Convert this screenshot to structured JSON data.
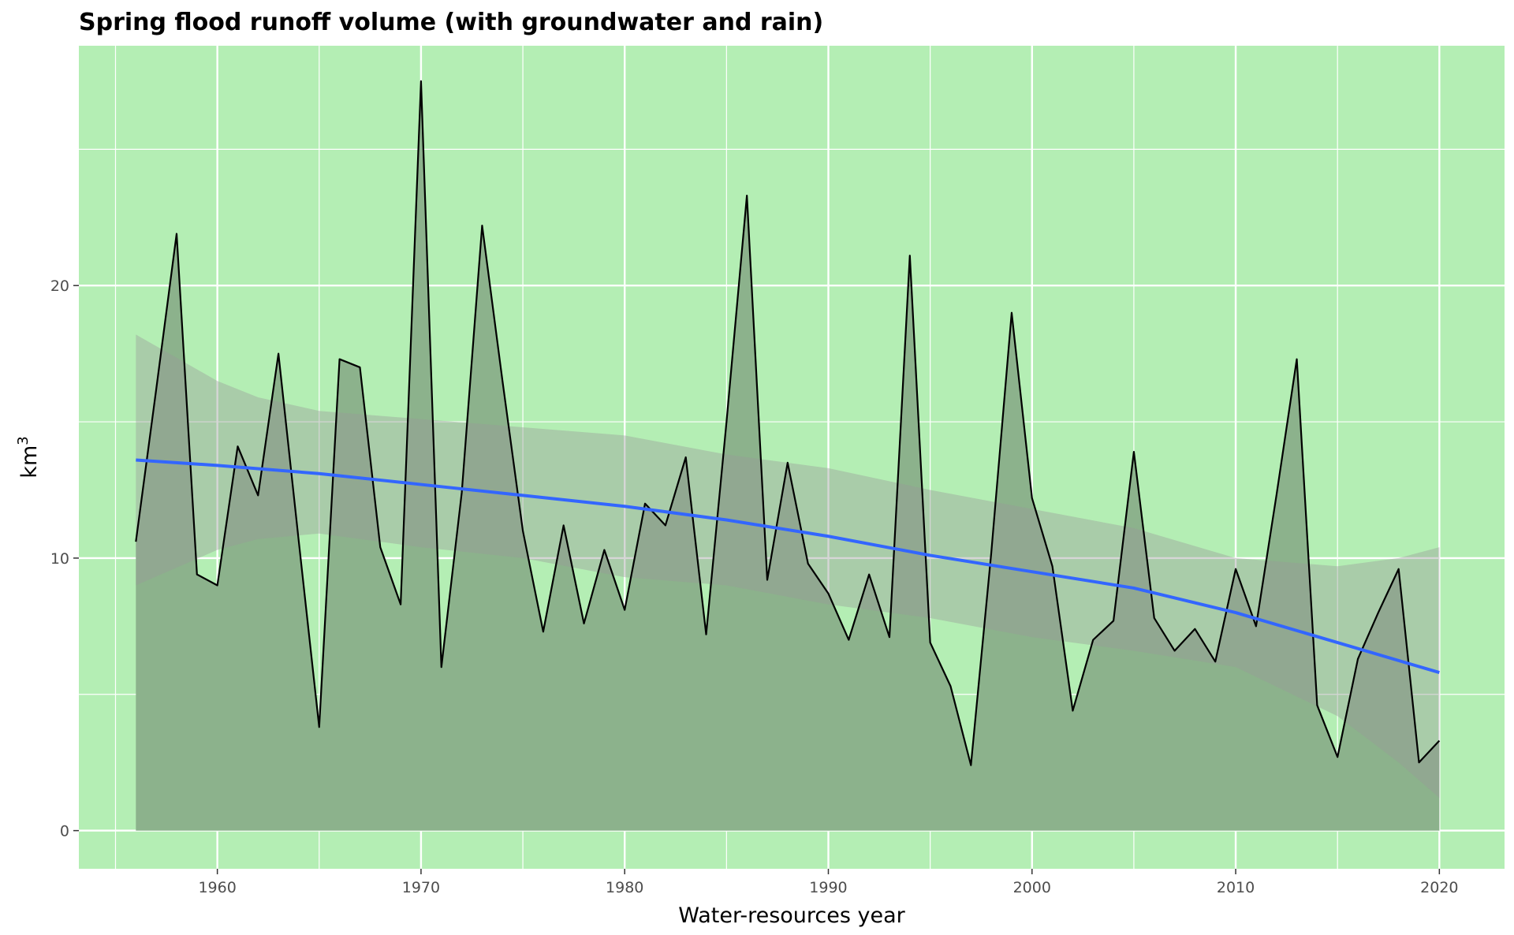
{
  "colors": {
    "panel_background": "#b4eeb4",
    "grid": "#ffffff",
    "area_fill": "#8cb28c",
    "confidence_band": "#999999",
    "series_line": "#000000",
    "trend_line": "#3366ff",
    "tick_label": "#4d4d4d"
  },
  "chart_data": {
    "type": "area",
    "title": "Spring flood runoff volume (with groundwater and rain)",
    "xlabel": "Water-resources year",
    "ylabel": "km",
    "ylabel_superscript": "3",
    "xlim": [
      1953.2,
      2023.2
    ],
    "ylim": [
      -1.4,
      28.8
    ],
    "x_ticks": [
      1960,
      1970,
      1980,
      1990,
      2000,
      2010,
      2020
    ],
    "y_ticks": [
      0,
      10,
      20
    ],
    "x_tick_labels": [
      "1960",
      "1970",
      "1980",
      "1990",
      "2000",
      "2010",
      "2020"
    ],
    "y_tick_labels": [
      "0",
      "10",
      "20"
    ],
    "grid": true,
    "legend": "none",
    "series": [
      {
        "type": "area",
        "x": [
          1956,
          1957,
          1958,
          1959,
          1960,
          1961,
          1962,
          1963,
          1964,
          1965,
          1966,
          1967,
          1968,
          1969,
          1970,
          1971,
          1972,
          1973,
          1974,
          1975,
          1976,
          1977,
          1978,
          1979,
          1980,
          1981,
          1982,
          1983,
          1984,
          1985,
          1986,
          1987,
          1988,
          1989,
          1990,
          1991,
          1992,
          1993,
          1994,
          1995,
          1996,
          1997,
          1998,
          1999,
          2000,
          2001,
          2002,
          2003,
          2004,
          2005,
          2006,
          2007,
          2008,
          2009,
          2010,
          2011,
          2012,
          2013,
          2014,
          2015,
          2016,
          2017,
          2018,
          2019,
          2020
        ],
        "values": [
          10.6,
          16.2,
          21.9,
          9.4,
          9.0,
          14.1,
          12.3,
          17.5,
          10.6,
          3.8,
          17.3,
          17.0,
          10.4,
          8.3,
          27.5,
          6.0,
          12.4,
          22.2,
          16.5,
          11.0,
          7.3,
          11.2,
          7.6,
          10.3,
          8.1,
          12.0,
          11.2,
          13.7,
          7.2,
          15.0,
          23.3,
          9.2,
          13.5,
          9.8,
          8.7,
          7.0,
          9.4,
          7.1,
          21.1,
          6.9,
          5.3,
          2.4,
          10.2,
          19.0,
          12.2,
          9.7,
          4.4,
          7.0,
          7.7,
          13.9,
          7.8,
          6.6,
          7.4,
          6.2,
          9.6,
          7.5,
          12.3,
          17.3,
          4.6,
          2.7,
          6.3,
          8.0,
          9.6,
          2.5,
          3.3
        ]
      },
      {
        "type": "line",
        "x": [
          1956,
          1960,
          1965,
          1970,
          1975,
          1980,
          1985,
          1990,
          1995,
          2000,
          2005,
          2010,
          2015,
          2020
        ],
        "values": [
          13.6,
          13.4,
          13.1,
          12.7,
          12.3,
          11.9,
          11.4,
          10.8,
          10.1,
          9.5,
          8.9,
          8.0,
          6.9,
          5.8
        ]
      },
      {
        "type": "band",
        "x": [
          1956,
          1960,
          1962,
          1965,
          1970,
          1975,
          1980,
          1985,
          1990,
          1995,
          2000,
          2005,
          2010,
          2015,
          2018,
          2020
        ],
        "lower": [
          9.0,
          10.3,
          10.7,
          10.9,
          10.4,
          10.0,
          9.3,
          9.0,
          8.3,
          7.8,
          7.1,
          6.6,
          6.0,
          4.2,
          2.5,
          1.2
        ],
        "upper": [
          18.2,
          16.5,
          15.9,
          15.4,
          15.1,
          14.8,
          14.5,
          13.8,
          13.3,
          12.5,
          11.8,
          11.1,
          10.0,
          9.7,
          10.0,
          10.4
        ]
      }
    ]
  }
}
